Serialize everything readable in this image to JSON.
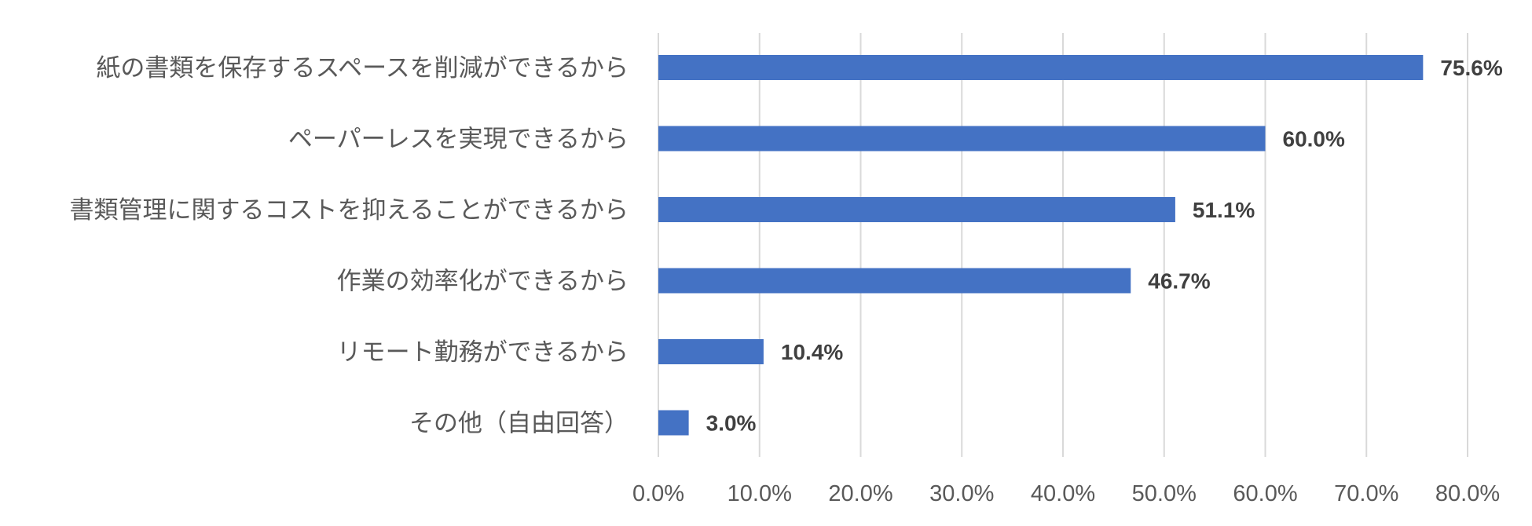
{
  "chart_data": {
    "type": "bar",
    "orientation": "horizontal",
    "categories": [
      "紙の書類を保存するスペースを削減ができるから",
      "ペーパーレスを実現できるから",
      "書類管理に関するコストを抑えることができるから",
      "作業の効率化ができるから",
      "リモート勤務ができるから",
      "その他（自由回答）"
    ],
    "values": [
      75.6,
      60.0,
      51.1,
      46.7,
      10.4,
      3.0
    ],
    "data_labels": [
      "75.6%",
      "60.0%",
      "51.1%",
      "46.7%",
      "10.4%",
      "3.0%"
    ],
    "xlim": [
      0,
      80
    ],
    "xticks": [
      0,
      10,
      20,
      30,
      40,
      50,
      60,
      70,
      80
    ],
    "xtick_labels": [
      "0.0%",
      "10.0%",
      "20.0%",
      "30.0%",
      "40.0%",
      "50.0%",
      "60.0%",
      "70.0%",
      "80.0%"
    ],
    "grid": "vertical",
    "legend": "none",
    "bar_color": "#4472C4"
  }
}
